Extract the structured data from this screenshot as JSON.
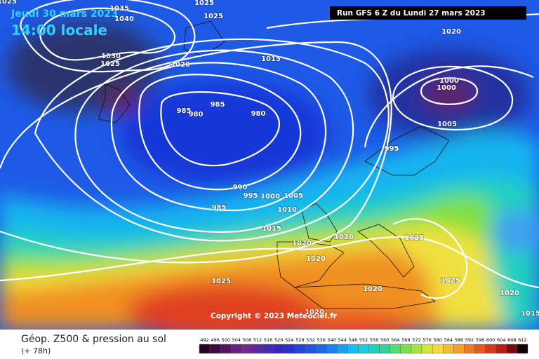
{
  "header": {
    "date": "Jeudi 30 mars 2023",
    "time": "14:00 locale",
    "run": "Run GFS 6 Z du Lundi 27 mars 2023"
  },
  "isobar_labels": [
    1025,
    1035,
    1040,
    1025,
    1025,
    1030,
    1025,
    1020,
    1015,
    985,
    980,
    985,
    980,
    1020,
    1000,
    1000,
    1005,
    995,
    990,
    995,
    1000,
    1005,
    1010,
    985,
    1015,
    1020,
    1020,
    1025,
    1020,
    1025,
    1020,
    1025,
    1020,
    1015,
    1020
  ],
  "copyright": "Copyright © 2023 Meteociel.fr",
  "footer": {
    "title": "Géop. Z500 & pression au sol",
    "lead_time": "(+ 78h)",
    "scale": [
      492,
      496,
      500,
      504,
      508,
      512,
      516,
      520,
      524,
      528,
      532,
      536,
      540,
      544,
      548,
      552,
      556,
      560,
      564,
      568,
      572,
      576,
      580,
      584,
      588,
      592,
      596,
      600,
      604,
      608,
      612
    ]
  }
}
